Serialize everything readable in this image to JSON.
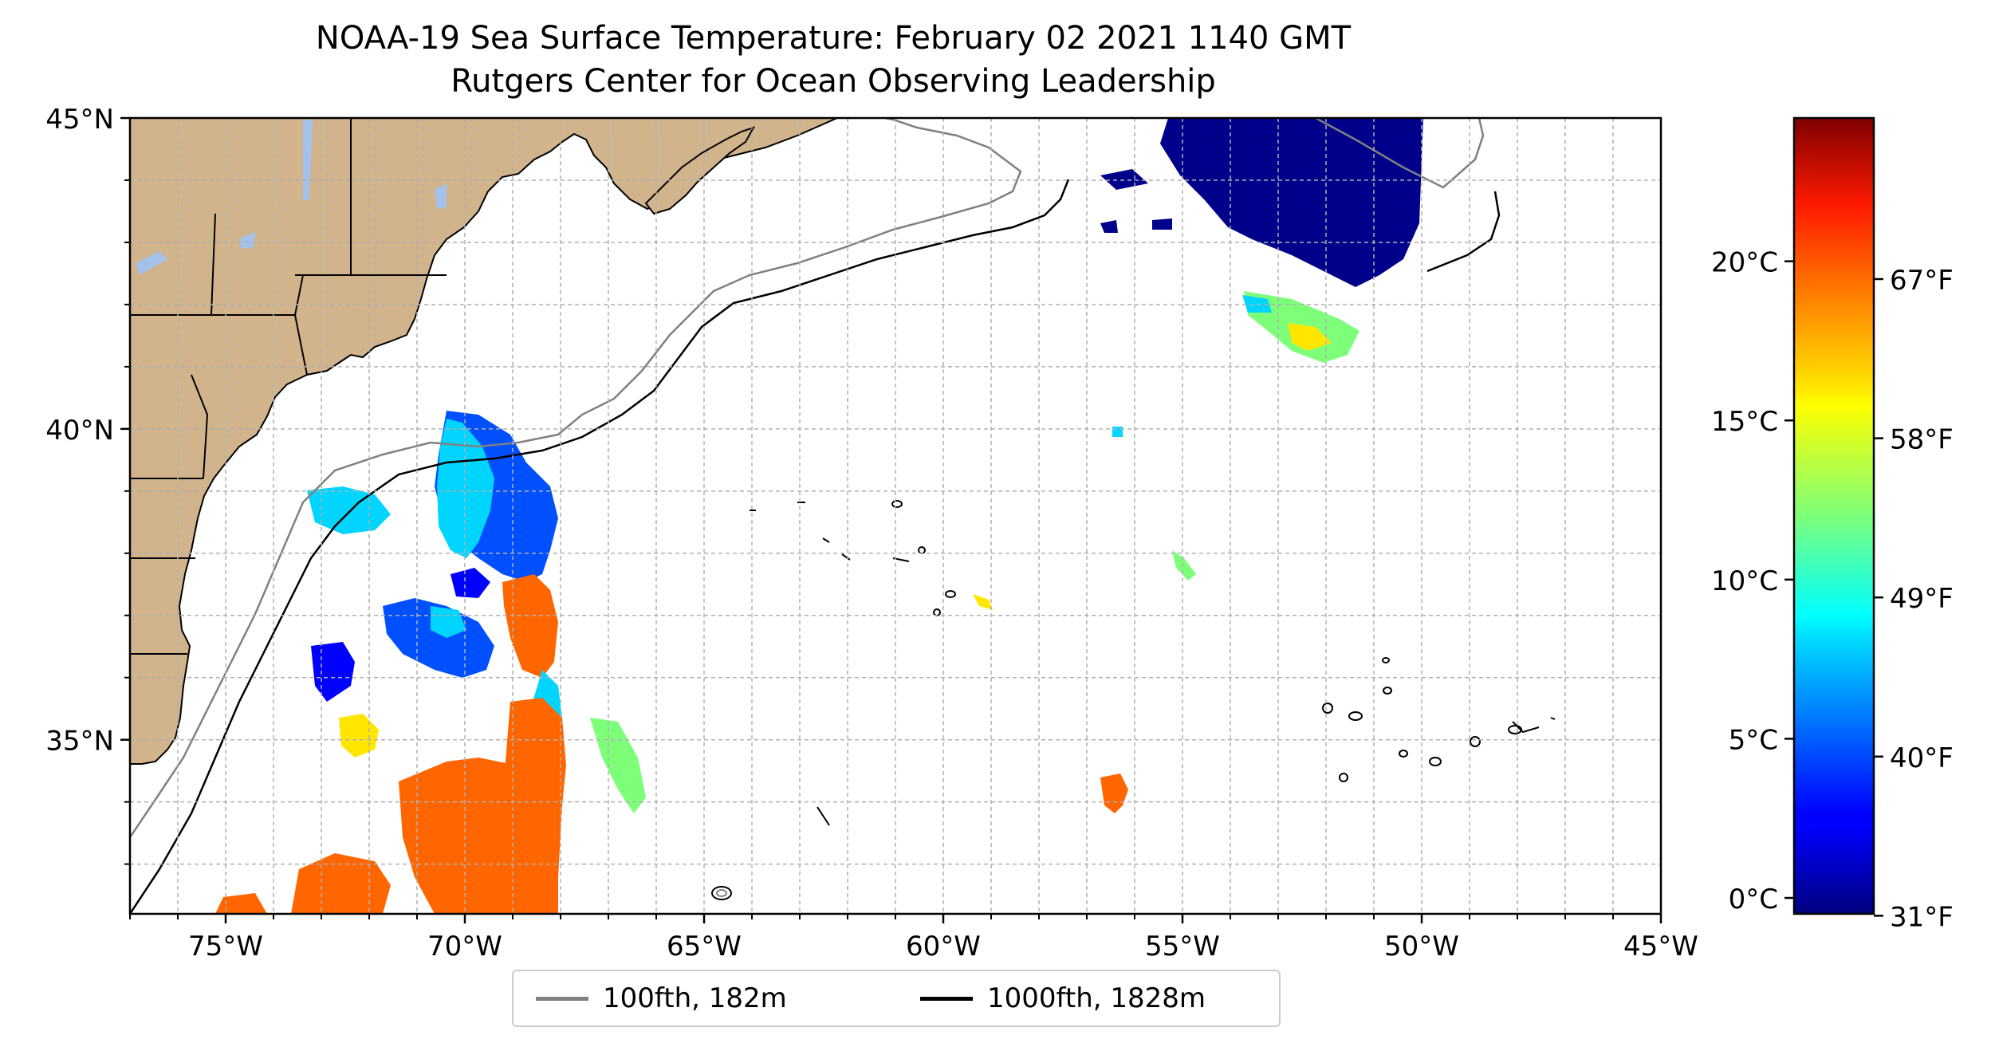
{
  "title": "NOAA-19 Sea Surface Temperature: February 02 2021 1140 GMT",
  "subtitle": "Rutgers Center for Ocean Observing Leadership",
  "map": {
    "lon_range": [
      -77,
      -45
    ],
    "lat_range": [
      32.2,
      45
    ],
    "lat_ticks": [
      {
        "value": 45,
        "label": "45°N"
      },
      {
        "value": 40,
        "label": "40°N"
      },
      {
        "value": 35,
        "label": "35°N"
      }
    ],
    "lon_ticks": [
      {
        "value": -75,
        "label": "75°W"
      },
      {
        "value": -70,
        "label": "70°W"
      },
      {
        "value": -65,
        "label": "65°W"
      },
      {
        "value": -60,
        "label": "60°W"
      },
      {
        "value": -55,
        "label": "55°W"
      },
      {
        "value": -50,
        "label": "50°W"
      },
      {
        "value": -45,
        "label": "45°W"
      }
    ],
    "grid": true,
    "land_color": "#d2b48c",
    "lake_color": "#a3c1ea"
  },
  "colorbar": {
    "colormap": "jet",
    "range_c": [
      -0.5,
      24.5
    ],
    "celsius_ticks": [
      {
        "value": 0,
        "label": "0°C"
      },
      {
        "value": 5,
        "label": "5°C"
      },
      {
        "value": 10,
        "label": "10°C"
      },
      {
        "value": 15,
        "label": "15°C"
      },
      {
        "value": 20,
        "label": "20°C"
      }
    ],
    "fahrenheit_ticks": [
      {
        "value": -0.56,
        "label": "31°F"
      },
      {
        "value": 4.44,
        "label": "40°F"
      },
      {
        "value": 9.44,
        "label": "49°F"
      },
      {
        "value": 14.44,
        "label": "58°F"
      },
      {
        "value": 19.44,
        "label": "67°F"
      }
    ]
  },
  "legend": {
    "items": [
      {
        "label": "100fth, 182m",
        "color": "#808080"
      },
      {
        "label": "1000fth, 1828m",
        "color": "#000000"
      }
    ]
  }
}
